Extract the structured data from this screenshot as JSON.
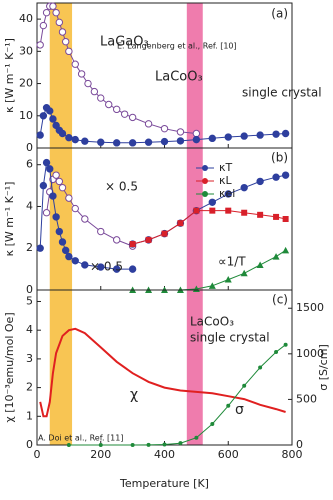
{
  "chart_data": [
    {
      "type": "line",
      "ylabel": "κ [W m⁻¹ K⁻¹]",
      "xlim": [
        0,
        800
      ],
      "xticks": [
        0,
        200,
        400,
        600,
        800
      ],
      "ylim": [
        0,
        45
      ],
      "yticks": [
        0,
        10,
        20,
        30,
        40
      ],
      "annotations": [
        "(a)",
        "E. Langenberg et al., Ref. [10]",
        "single crystal"
      ],
      "series": [
        {
          "name": "LaGaO₃",
          "color": "#7a4a9a",
          "marker": "circle-open",
          "x": [
            10,
            20,
            30,
            40,
            50,
            60,
            70,
            80,
            90,
            100,
            120,
            140,
            160,
            180,
            200,
            225,
            250,
            275,
            300,
            350,
            400,
            450,
            500
          ],
          "values": [
            32,
            38,
            42,
            44,
            44,
            42,
            39,
            36,
            33,
            30,
            26,
            23,
            20,
            17.5,
            15.5,
            13.5,
            12,
            10.5,
            9.5,
            7.5,
            6,
            5,
            4.5
          ]
        },
        {
          "name": "LaCoO₃",
          "color": "#2e3f9e",
          "marker": "circle",
          "x": [
            10,
            20,
            30,
            40,
            50,
            60,
            70,
            80,
            100,
            120,
            150,
            200,
            250,
            300,
            350,
            400,
            450,
            500,
            550,
            600,
            650,
            700,
            750,
            780
          ],
          "values": [
            4,
            10,
            12.5,
            11.5,
            9,
            7,
            5.5,
            4.5,
            3.2,
            2.6,
            2.1,
            1.8,
            1.6,
            1.6,
            1.8,
            2,
            2.2,
            2.6,
            3,
            3.4,
            3.7,
            4,
            4.3,
            4.5
          ]
        }
      ]
    },
    {
      "type": "line",
      "ylabel": "κ [W m⁻¹ K⁻¹]",
      "xlim": [
        0,
        800
      ],
      "xticks": [
        0,
        200,
        400,
        600,
        800
      ],
      "ylim": [
        0,
        6.8
      ],
      "yticks": [
        0,
        2,
        4,
        6
      ],
      "annotations": [
        "(b)",
        "× 0.5",
        "× 0.5",
        "∝1/T"
      ],
      "series": [
        {
          "color": "#7a4a9a",
          "marker": "circle-open",
          "x": [
            30,
            40,
            50,
            60,
            70,
            80,
            100,
            120,
            150,
            200,
            250,
            300
          ],
          "values": [
            3.7,
            4.7,
            5.3,
            5.5,
            5.2,
            4.9,
            4.4,
            3.9,
            3.4,
            2.8,
            2.4,
            2.1
          ]
        },
        {
          "color": "#2e3f9e",
          "marker": "circle",
          "x": [
            10,
            20,
            30,
            40,
            50,
            60,
            70,
            80,
            90,
            100,
            120,
            150,
            200,
            250,
            300
          ],
          "values": [
            2.0,
            5.0,
            6.1,
            5.8,
            4.5,
            3.5,
            2.8,
            2.3,
            1.9,
            1.6,
            1.4,
            1.2,
            1.1,
            1.0,
            1.0
          ]
        },
        {
          "name": "κT",
          "color": "#2e3f9e",
          "marker": "circle",
          "x": [
            300,
            350,
            400,
            450,
            500,
            550,
            600,
            650,
            700,
            750,
            780
          ],
          "values": [
            2.2,
            2.4,
            2.7,
            3.2,
            3.8,
            4.2,
            4.6,
            4.9,
            5.2,
            5.4,
            5.5
          ]
        },
        {
          "name": "κL",
          "color": "#d8202a",
          "marker": "square",
          "x": [
            300,
            350,
            400,
            450,
            500,
            550,
            600,
            650,
            700,
            750,
            780
          ],
          "values": [
            2.2,
            2.4,
            2.7,
            3.2,
            3.8,
            3.8,
            3.8,
            3.7,
            3.6,
            3.5,
            3.4
          ]
        },
        {
          "name": "κel",
          "color": "#1f8a3a",
          "marker": "triangle",
          "x": [
            300,
            350,
            400,
            450,
            500,
            550,
            600,
            650,
            700,
            750,
            780
          ],
          "values": [
            0,
            0,
            0,
            0,
            0.05,
            0.2,
            0.5,
            0.8,
            1.2,
            1.6,
            1.9
          ]
        }
      ]
    },
    {
      "type": "line",
      "xlabel": "Temperature [K]",
      "ylabel": "χ [10⁻³emu/mol Oe]",
      "y2label": "σ [S/cm]",
      "xlim": [
        0,
        800
      ],
      "xticks": [
        0,
        200,
        400,
        600,
        800
      ],
      "ylim": [
        0,
        5.4
      ],
      "yticks": [
        0,
        1,
        2,
        3,
        4,
        5
      ],
      "y2lim": [
        0,
        1700
      ],
      "y2ticks": [
        0,
        500,
        1000,
        1500
      ],
      "annotations": [
        "(c)",
        "LaCoO₃",
        "single crystal",
        "A. Doi et al., Ref. [11]"
      ],
      "series": [
        {
          "name": "χ",
          "color": "#e02020",
          "marker": "none",
          "x": [
            10,
            20,
            30,
            40,
            50,
            60,
            80,
            100,
            120,
            150,
            200,
            250,
            300,
            350,
            400,
            450,
            500,
            550,
            600,
            650,
            700,
            750,
            780
          ],
          "values": [
            1.5,
            1.0,
            1.0,
            1.5,
            2.5,
            3.2,
            3.8,
            4.0,
            4.05,
            3.9,
            3.4,
            2.9,
            2.5,
            2.2,
            2.0,
            1.9,
            1.85,
            1.8,
            1.7,
            1.6,
            1.4,
            1.25,
            1.15
          ]
        },
        {
          "name": "σ",
          "color": "#1f8a3a",
          "marker": "dot",
          "axis": "y2",
          "x": [
            100,
            200,
            300,
            350,
            400,
            450,
            500,
            550,
            600,
            650,
            700,
            750,
            780
          ],
          "values": [
            0,
            0,
            0,
            1,
            5,
            20,
            80,
            230,
            430,
            650,
            850,
            1020,
            1100
          ]
        }
      ]
    }
  ]
}
